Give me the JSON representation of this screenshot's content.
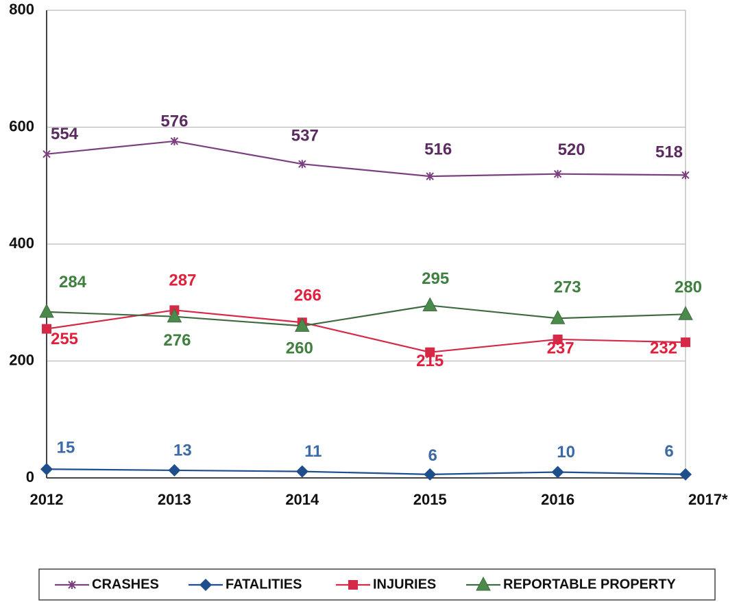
{
  "chart_data": {
    "type": "line",
    "categories": [
      "2012",
      "2013",
      "2014",
      "2015",
      "2016",
      "2017*"
    ],
    "series": [
      {
        "name": "CRASHES",
        "color": "#7b3f80",
        "label_color": "#5b2a60",
        "marker": "star",
        "values": [
          554,
          576,
          537,
          516,
          520,
          518
        ]
      },
      {
        "name": "FATALITIES",
        "color": "#1f4e8c",
        "label_color": "#3b6aa6",
        "marker": "diamond",
        "values": [
          15,
          13,
          11,
          6,
          10,
          6
        ]
      },
      {
        "name": "INJURIES",
        "color": "#d42a48",
        "label_color": "#e0203c",
        "marker": "square",
        "values": [
          255,
          287,
          266,
          215,
          237,
          232
        ]
      },
      {
        "name": "REPORTABLE PROPERTY",
        "color": "#3f6a3f",
        "label_color": "#3f7f3f",
        "marker": "triangle",
        "values": [
          284,
          276,
          260,
          295,
          273,
          280
        ]
      }
    ],
    "ylim": [
      0,
      800
    ],
    "yticks": [
      0,
      200,
      400,
      600,
      800
    ],
    "grid": true,
    "legend": "bottom"
  }
}
